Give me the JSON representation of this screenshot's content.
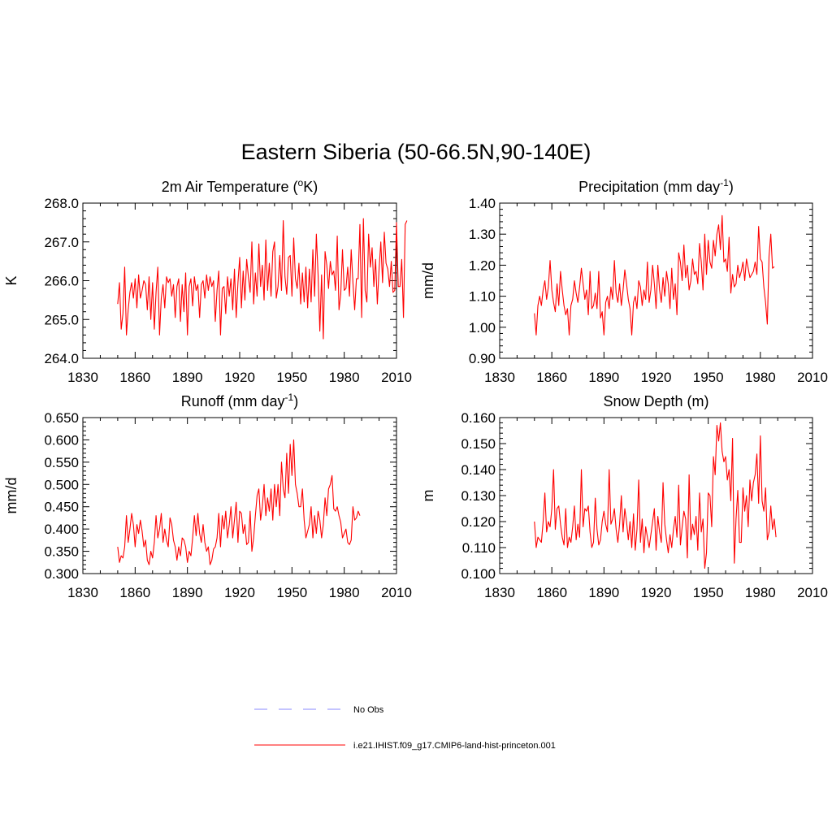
{
  "figure": {
    "title": "Eastern Siberia (50-66.5N,90-140E)"
  },
  "legend": {
    "items": [
      {
        "label": "No Obs",
        "color": "#a0a0ff",
        "style": "dashed"
      },
      {
        "label": "i.e21.IHIST.f09_g17.CMIP6-land-hist-princeton.001",
        "color": "#ff0000",
        "style": "solid"
      }
    ]
  },
  "chart_data": [
    {
      "type": "line",
      "title": "2m Air Temperature (",
      "title_sup": "o",
      "title_tail": "K)",
      "ylabel": "K",
      "xlim": [
        1830,
        2010
      ],
      "ylim": [
        264.0,
        268.0
      ],
      "xticks": [
        1830,
        1860,
        1890,
        1920,
        1950,
        1980,
        2010
      ],
      "xtick_labels": [
        "1830",
        "1860",
        "1890",
        "1920",
        "1950",
        "1980",
        "2010"
      ],
      "yticks": [
        264.0,
        265.0,
        266.0,
        267.0,
        268.0
      ],
      "ytick_labels": [
        "264.0",
        "265.0",
        "266.0",
        "267.0",
        "268.0"
      ],
      "series": [
        {
          "color": "#ff0000",
          "x_start": 1850,
          "values": [
            265.4,
            265.95,
            264.75,
            265.15,
            266.35,
            264.6,
            265.25,
            265.7,
            265.95,
            265.55,
            266.05,
            265.3,
            266.15,
            265.55,
            265.75,
            266.0,
            265.9,
            265.25,
            266.1,
            265.0,
            265.95,
            264.75,
            265.7,
            266.35,
            264.6,
            265.55,
            265.9,
            265.3,
            266.1,
            265.95,
            266.05,
            265.6,
            265.9,
            265.05,
            265.85,
            266.05,
            264.95,
            265.9,
            265.2,
            266.2,
            264.6,
            265.85,
            266.05,
            265.35,
            266.1,
            265.75,
            265.9,
            265.05,
            265.9,
            266.0,
            265.55,
            266.15,
            265.75,
            266.1,
            265.85,
            266.0,
            264.95,
            265.75,
            266.25,
            264.6,
            265.8,
            265.85,
            265.15,
            266.1,
            265.6,
            266.05,
            265.25,
            266.3,
            265.05,
            265.95,
            266.6,
            265.3,
            266.25,
            265.5,
            266.55,
            266.1,
            265.7,
            267.0,
            265.4,
            266.2,
            265.6,
            266.95,
            265.85,
            266.4,
            265.5,
            267.05,
            265.75,
            266.45,
            265.6,
            266.75,
            267.0,
            265.55,
            265.85,
            266.65,
            265.75,
            267.55,
            266.1,
            265.65,
            266.6,
            266.65,
            265.6,
            267.1,
            266.05,
            265.8,
            266.45,
            265.4,
            266.2,
            265.45,
            266.35,
            265.3,
            266.3,
            265.45,
            266.8,
            265.6,
            267.2,
            266.15,
            264.7,
            266.15,
            264.5,
            266.75,
            266.4,
            265.8,
            266.5,
            266.15,
            266.25,
            265.75,
            267.15,
            265.25,
            265.65,
            266.8,
            265.75,
            265.8,
            266.35,
            265.6,
            266.8,
            265.95,
            265.25,
            266.05,
            266.05,
            267.45,
            265.05,
            267.6,
            265.75,
            265.45,
            267.2,
            266.35,
            266.85,
            265.85,
            266.55,
            265.4,
            266.3,
            267.0,
            265.95,
            267.25,
            266.45,
            266.3,
            265.85,
            266.5,
            265.7,
            265.75,
            267.5,
            265.85,
            265.85,
            266.55,
            265.05,
            267.45,
            267.55
          ]
        }
      ]
    },
    {
      "type": "line",
      "title": "Precipitation (mm day",
      "title_sup": "-1",
      "title_tail": ")",
      "ylabel": "mm/d",
      "xlim": [
        1830,
        2010
      ],
      "ylim": [
        0.9,
        1.4
      ],
      "xticks": [
        1830,
        1860,
        1890,
        1920,
        1950,
        1980,
        2010
      ],
      "xtick_labels": [
        "1830",
        "1860",
        "1890",
        "1920",
        "1950",
        "1980",
        "2010"
      ],
      "yticks": [
        0.9,
        1.0,
        1.1,
        1.2,
        1.3,
        1.4
      ],
      "ytick_labels": [
        "0.90",
        "1.00",
        "1.10",
        "1.20",
        "1.30",
        "1.40"
      ],
      "series": [
        {
          "color": "#ff0000",
          "x_start": 1850,
          "values": [
            1.045,
            0.975,
            1.07,
            1.1,
            1.07,
            1.12,
            1.15,
            1.09,
            1.13,
            1.215,
            1.12,
            1.08,
            1.05,
            1.14,
            1.07,
            1.18,
            1.12,
            1.07,
            1.04,
            1.06,
            0.975,
            1.07,
            1.09,
            1.15,
            1.11,
            1.08,
            1.13,
            1.19,
            1.14,
            1.09,
            1.12,
            1.04,
            1.18,
            1.06,
            1.07,
            1.11,
            1.06,
            1.18,
            1.03,
            1.05,
            0.975,
            1.08,
            1.1,
            1.06,
            1.13,
            1.09,
            1.215,
            1.11,
            1.08,
            1.14,
            1.07,
            1.12,
            1.185,
            1.14,
            1.09,
            1.06,
            0.975,
            1.08,
            1.1,
            1.06,
            1.15,
            1.13,
            1.07,
            1.12,
            1.09,
            1.21,
            1.08,
            1.12,
            1.2,
            1.14,
            1.06,
            1.2,
            1.12,
            1.08,
            1.16,
            1.1,
            1.18,
            1.14,
            1.06,
            1.19,
            1.09,
            1.14,
            1.04,
            1.24,
            1.21,
            1.15,
            1.265,
            1.16,
            1.2,
            1.12,
            1.15,
            1.22,
            1.17,
            1.18,
            1.14,
            1.27,
            1.21,
            1.12,
            1.3,
            1.17,
            1.28,
            1.21,
            1.19,
            1.28,
            1.23,
            1.3,
            1.33,
            1.25,
            1.36,
            1.21,
            1.22,
            1.18,
            1.29,
            1.11,
            1.17,
            1.13,
            1.14,
            1.2,
            1.16,
            1.18,
            1.21,
            1.15,
            1.22,
            1.19,
            1.16,
            1.17,
            1.18,
            1.21,
            1.17,
            1.325,
            1.22,
            1.21,
            1.13,
            1.08,
            1.01,
            1.23,
            1.3,
            1.19,
            1.195
          ]
        }
      ]
    },
    {
      "type": "line",
      "title": "Runoff (mm day",
      "title_sup": "-1",
      "title_tail": ")",
      "ylabel": "mm/d",
      "xlim": [
        1830,
        2010
      ],
      "ylim": [
        0.3,
        0.65
      ],
      "xticks": [
        1830,
        1860,
        1890,
        1920,
        1950,
        1980,
        2010
      ],
      "xtick_labels": [
        "1830",
        "1860",
        "1890",
        "1920",
        "1950",
        "1980",
        "2010"
      ],
      "yticks": [
        0.3,
        0.35,
        0.4,
        0.45,
        0.5,
        0.55,
        0.6,
        0.65
      ],
      "ytick_labels": [
        "0.300",
        "0.350",
        "0.400",
        "0.450",
        "0.500",
        "0.550",
        "0.600",
        "0.650"
      ],
      "series": [
        {
          "color": "#ff0000",
          "x_start": 1850,
          "values": [
            0.36,
            0.325,
            0.34,
            0.335,
            0.36,
            0.43,
            0.37,
            0.4,
            0.435,
            0.41,
            0.36,
            0.41,
            0.39,
            0.42,
            0.395,
            0.36,
            0.375,
            0.33,
            0.32,
            0.35,
            0.335,
            0.37,
            0.43,
            0.38,
            0.4,
            0.435,
            0.37,
            0.4,
            0.375,
            0.36,
            0.425,
            0.41,
            0.375,
            0.36,
            0.33,
            0.36,
            0.34,
            0.38,
            0.375,
            0.36,
            0.325,
            0.35,
            0.34,
            0.38,
            0.43,
            0.385,
            0.435,
            0.39,
            0.37,
            0.41,
            0.37,
            0.35,
            0.36,
            0.32,
            0.33,
            0.355,
            0.36,
            0.38,
            0.435,
            0.36,
            0.43,
            0.4,
            0.44,
            0.38,
            0.41,
            0.45,
            0.38,
            0.42,
            0.46,
            0.37,
            0.44,
            0.435,
            0.39,
            0.41,
            0.365,
            0.37,
            0.44,
            0.35,
            0.38,
            0.43,
            0.475,
            0.49,
            0.42,
            0.45,
            0.5,
            0.43,
            0.47,
            0.44,
            0.49,
            0.42,
            0.5,
            0.45,
            0.5,
            0.43,
            0.55,
            0.49,
            0.47,
            0.57,
            0.48,
            0.59,
            0.52,
            0.6,
            0.5,
            0.48,
            0.45,
            0.45,
            0.49,
            0.42,
            0.38,
            0.395,
            0.41,
            0.45,
            0.38,
            0.43,
            0.39,
            0.44,
            0.42,
            0.38,
            0.41,
            0.47,
            0.43,
            0.49,
            0.5,
            0.52,
            0.445,
            0.44,
            0.45,
            0.43,
            0.415,
            0.38,
            0.39,
            0.4,
            0.37,
            0.365,
            0.375,
            0.45,
            0.42,
            0.425,
            0.44,
            0.43
          ]
        }
      ]
    },
    {
      "type": "line",
      "title": "Snow Depth (m)",
      "title_sup": "",
      "title_tail": "",
      "ylabel": "m",
      "xlim": [
        1830,
        2010
      ],
      "ylim": [
        0.1,
        0.16
      ],
      "xticks": [
        1830,
        1860,
        1890,
        1920,
        1950,
        1980,
        2010
      ],
      "xtick_labels": [
        "1830",
        "1860",
        "1890",
        "1920",
        "1950",
        "1980",
        "2010"
      ],
      "yticks": [
        0.1,
        0.11,
        0.12,
        0.13,
        0.14,
        0.15,
        0.16
      ],
      "ytick_labels": [
        "0.100",
        "0.110",
        "0.120",
        "0.130",
        "0.140",
        "0.150",
        "0.160"
      ],
      "series": [
        {
          "color": "#ff0000",
          "x_start": 1850,
          "values": [
            0.12,
            0.11,
            0.114,
            0.113,
            0.112,
            0.12,
            0.131,
            0.116,
            0.12,
            0.118,
            0.125,
            0.14,
            0.117,
            0.125,
            0.126,
            0.119,
            0.114,
            0.111,
            0.125,
            0.11,
            0.114,
            0.112,
            0.118,
            0.126,
            0.113,
            0.119,
            0.114,
            0.14,
            0.118,
            0.125,
            0.124,
            0.126,
            0.116,
            0.11,
            0.112,
            0.129,
            0.117,
            0.111,
            0.113,
            0.12,
            0.124,
            0.119,
            0.116,
            0.14,
            0.119,
            0.121,
            0.125,
            0.117,
            0.112,
            0.119,
            0.13,
            0.116,
            0.125,
            0.12,
            0.113,
            0.12,
            0.11,
            0.123,
            0.109,
            0.117,
            0.136,
            0.112,
            0.121,
            0.108,
            0.118,
            0.114,
            0.11,
            0.115,
            0.12,
            0.125,
            0.109,
            0.122,
            0.116,
            0.112,
            0.135,
            0.119,
            0.113,
            0.108,
            0.115,
            0.11,
            0.117,
            0.122,
            0.114,
            0.134,
            0.111,
            0.118,
            0.124,
            0.121,
            0.106,
            0.138,
            0.113,
            0.119,
            0.115,
            0.122,
            0.109,
            0.131,
            0.116,
            0.121,
            0.102,
            0.108,
            0.131,
            0.13,
            0.118,
            0.145,
            0.138,
            0.157,
            0.151,
            0.158,
            0.147,
            0.143,
            0.145,
            0.136,
            0.14,
            0.128,
            0.152,
            0.104,
            0.121,
            0.132,
            0.112,
            0.112,
            0.133,
            0.124,
            0.13,
            0.118,
            0.136,
            0.128,
            0.135,
            0.138,
            0.146,
            0.127,
            0.153,
            0.128,
            0.124,
            0.133,
            0.113,
            0.116,
            0.126,
            0.117,
            0.121,
            0.114
          ]
        }
      ]
    }
  ]
}
